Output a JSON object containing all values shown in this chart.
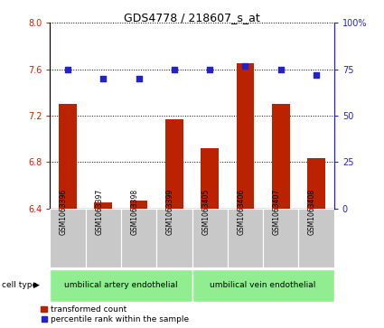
{
  "title": "GDS4778 / 218607_s_at",
  "samples": [
    "GSM1063396",
    "GSM1063397",
    "GSM1063398",
    "GSM1063399",
    "GSM1063405",
    "GSM1063406",
    "GSM1063407",
    "GSM1063408"
  ],
  "transformed_count": [
    7.3,
    6.45,
    6.47,
    7.17,
    6.92,
    7.65,
    7.3,
    6.83
  ],
  "percentile_rank": [
    75,
    70,
    70,
    75,
    75,
    77,
    75,
    72
  ],
  "ylim_left": [
    6.4,
    8.0
  ],
  "ylim_right": [
    0,
    100
  ],
  "yticks_left": [
    6.4,
    6.8,
    7.2,
    7.6,
    8.0
  ],
  "yticks_right": [
    0,
    25,
    50,
    75,
    100
  ],
  "bar_color": "#BB2200",
  "dot_color": "#2222CC",
  "bar_bottom": 6.4,
  "group1_label": "umbilical artery endothelial",
  "group2_label": "umbilical vein endothelial",
  "cell_type_color": "#90EE90",
  "cell_type_label": "cell type",
  "legend_bar_label": "transformed count",
  "legend_dot_label": "percentile rank within the sample",
  "tick_color_left": "#CC2200",
  "tick_color_right": "#2222CC",
  "label_box_color": "#C8C8C8"
}
